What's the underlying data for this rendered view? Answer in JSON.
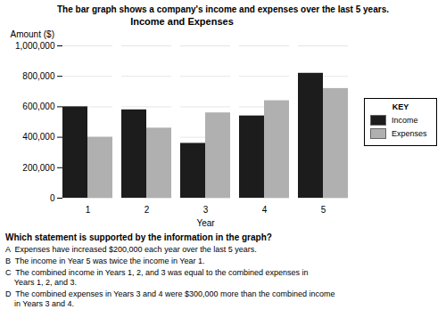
{
  "chart_data": {
    "type": "bar",
    "title": "Income and Expenses",
    "subtitle": "The bar graph shows a company's income and expenses over the last 5 years.",
    "xlabel": "Year",
    "ylabel": "Amount ($)",
    "categories": [
      "1",
      "2",
      "3",
      "4",
      "5"
    ],
    "series": [
      {
        "name": "Income",
        "color": "#1c1c1c",
        "values": [
          600000,
          580000,
          360000,
          540000,
          820000
        ]
      },
      {
        "name": "Expenses",
        "color": "#b0b0b0",
        "values": [
          400000,
          460000,
          560000,
          640000,
          720000
        ]
      }
    ],
    "ylim": [
      0,
      1000000
    ],
    "yticks": [
      0,
      {
        "value": 200000,
        "label": "200,000"
      },
      {
        "value": 400000,
        "label": "400,000"
      },
      {
        "value": 600000,
        "label": "600,000"
      },
      {
        "value": 800000,
        "label": "800,000"
      },
      {
        "value": 1000000,
        "label": "1,000,000"
      }
    ],
    "grid": true,
    "legend": "right",
    "legend_title": "KEY",
    "annotations": [
      "Which statement is supported by the information in the graph?",
      "A  Expenses have increased $200,000 each year over the last 5 years.",
      "B  The income in Year 5 was twice the income in Year 1.",
      "C  The combined income in Years 1, 2, and 3 was equal to the combined expenses in\n    Years 1, 2, and 3.",
      "D  The combined expenses in Years 3 and 4 were $300,000 more than the combined income\n    in Years 3 and 4."
    ]
  }
}
